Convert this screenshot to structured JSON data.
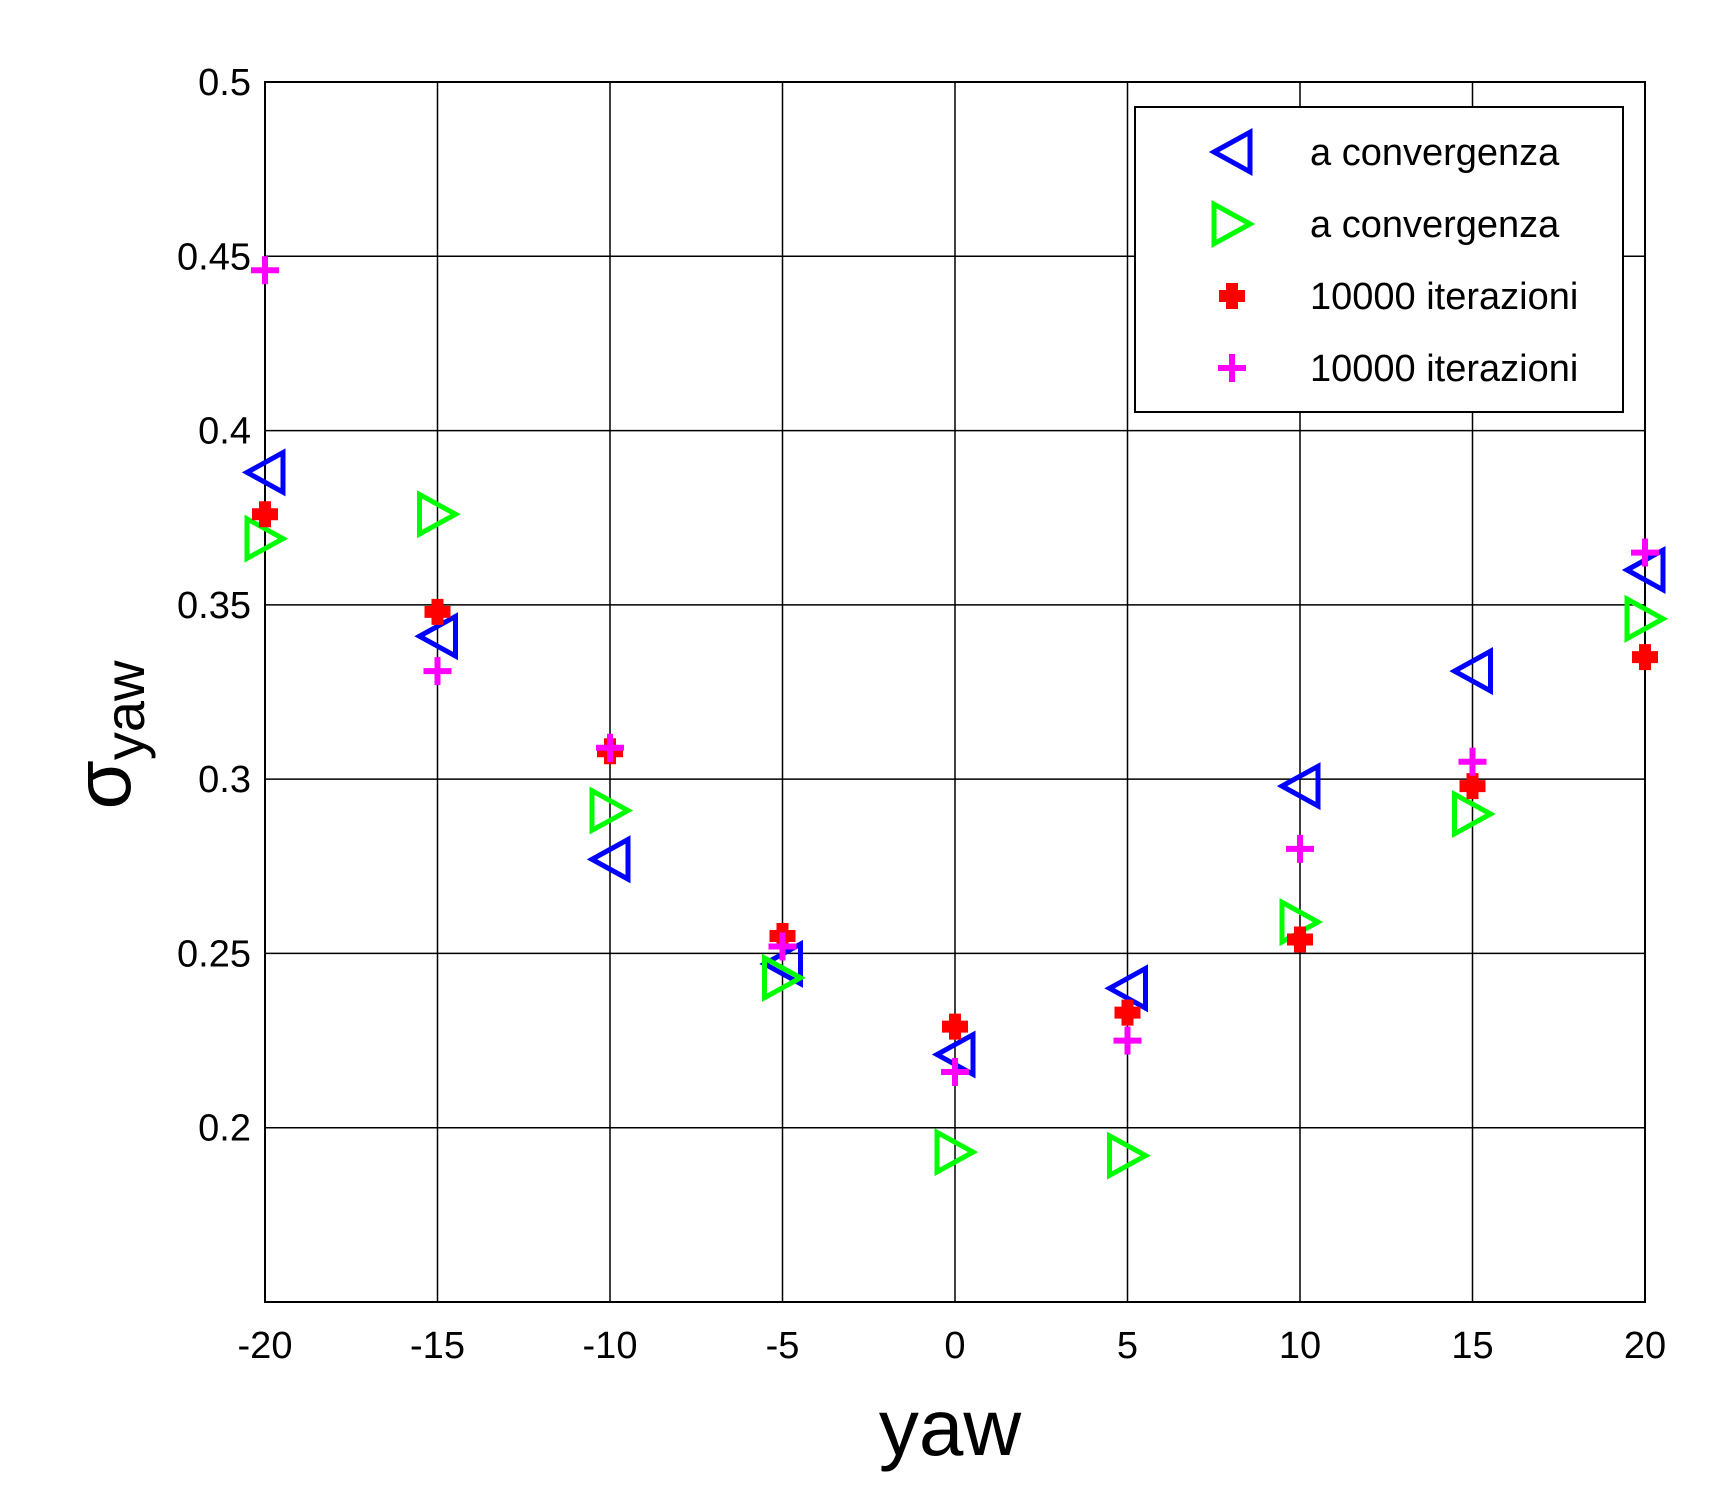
{
  "chart_data": {
    "type": "scatter",
    "xlabel": "yaw",
    "ylabel": {
      "symbol": "σ",
      "subscript": "yaw"
    },
    "xlim": [
      -20,
      20
    ],
    "ylim": [
      0.15,
      0.5
    ],
    "xticks": [
      "-20",
      "-15",
      "-10",
      "-5",
      "0",
      "5",
      "10",
      "15",
      "20"
    ],
    "yticks": [
      "0.2",
      "0.25",
      "0.3",
      "0.35",
      "0.4",
      "0.45",
      "0.5"
    ],
    "grid": true,
    "legend_position": "top-right",
    "series": [
      {
        "name": "a convergenza",
        "marker": "triangle-left",
        "color": "#0000ff",
        "x": [
          -20,
          -15,
          -10,
          -5,
          0,
          5,
          10,
          15,
          20
        ],
        "y": [
          0.388,
          0.341,
          0.277,
          0.247,
          0.221,
          0.24,
          0.298,
          0.331,
          0.36
        ]
      },
      {
        "name": "a convergenza",
        "marker": "triangle-right",
        "color": "#00ff00",
        "x": [
          -20,
          -15,
          -10,
          -5,
          0,
          5,
          10,
          15,
          20
        ],
        "y": [
          0.369,
          0.376,
          0.291,
          0.243,
          0.193,
          0.192,
          0.259,
          0.29,
          0.346
        ]
      },
      {
        "name": "10000 iterazioni",
        "marker": "plus-bold",
        "color": "#ff0000",
        "x": [
          -20,
          -15,
          -10,
          -5,
          0,
          5,
          10,
          15,
          20
        ],
        "y": [
          0.376,
          0.348,
          0.308,
          0.255,
          0.229,
          0.233,
          0.254,
          0.298,
          0.335
        ]
      },
      {
        "name": "10000 iterazioni",
        "marker": "plus",
        "color": "#ff00ff",
        "x": [
          -20,
          -15,
          -10,
          -5,
          0,
          5,
          10,
          15,
          20
        ],
        "y": [
          0.446,
          0.331,
          0.309,
          0.252,
          0.216,
          0.225,
          0.28,
          0.305,
          0.365
        ]
      }
    ]
  }
}
